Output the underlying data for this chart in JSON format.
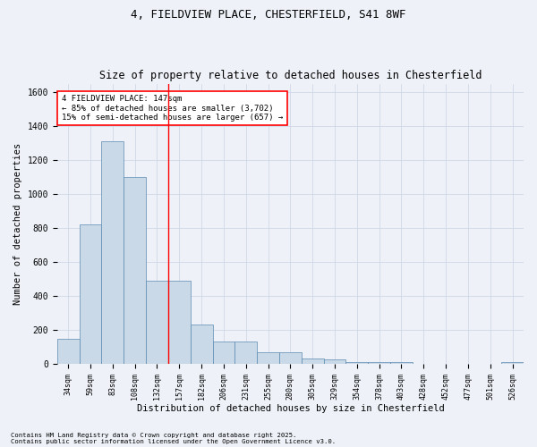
{
  "title1": "4, FIELDVIEW PLACE, CHESTERFIELD, S41 8WF",
  "title2": "Size of property relative to detached houses in Chesterfield",
  "xlabel": "Distribution of detached houses by size in Chesterfield",
  "ylabel": "Number of detached properties",
  "categories": [
    "34sqm",
    "59sqm",
    "83sqm",
    "108sqm",
    "132sqm",
    "157sqm",
    "182sqm",
    "206sqm",
    "231sqm",
    "255sqm",
    "280sqm",
    "305sqm",
    "329sqm",
    "354sqm",
    "378sqm",
    "403sqm",
    "428sqm",
    "452sqm",
    "477sqm",
    "501sqm",
    "526sqm"
  ],
  "values": [
    150,
    820,
    1310,
    1100,
    490,
    490,
    235,
    135,
    135,
    70,
    70,
    35,
    25,
    10,
    10,
    10,
    0,
    0,
    0,
    0,
    10
  ],
  "bar_color": "#c9d9e8",
  "bar_edge_color": "#5a8ab0",
  "grid_color": "#d0d8e8",
  "bg_color": "#eef2f8",
  "vline_x_index": 5,
  "vline_color": "red",
  "annotation_text": "4 FIELDVIEW PLACE: 147sqm\n← 85% of detached houses are smaller (3,702)\n15% of semi-detached houses are larger (657) →",
  "annotation_box_color": "white",
  "annotation_box_edge": "red",
  "footnote1": "Contains HM Land Registry data © Crown copyright and database right 2025.",
  "footnote2": "Contains public sector information licensed under the Open Government Licence v3.0.",
  "ylim": [
    0,
    1650
  ],
  "title_fontsize": 9,
  "subtitle_fontsize": 8.5,
  "tick_fontsize": 6,
  "ylabel_fontsize": 7.5,
  "xlabel_fontsize": 7.5,
  "annot_fontsize": 6.5,
  "footnote_fontsize": 5.2
}
